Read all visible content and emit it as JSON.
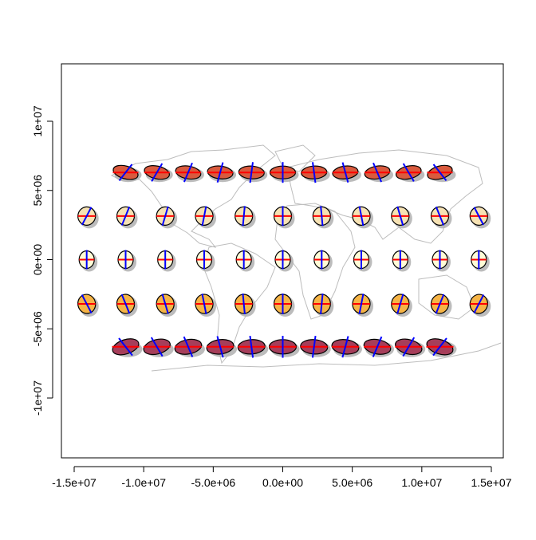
{
  "chart_data": {
    "type": "map",
    "title": "",
    "xlabel": "",
    "ylabel": "",
    "xlim": [
      -16000000,
      16000000
    ],
    "ylim": [
      -14200000,
      14200000
    ],
    "x_ticks": [
      {
        "value": -15000000,
        "label": "-1.5e+07"
      },
      {
        "value": -10000000,
        "label": "-1.0e+07"
      },
      {
        "value": -5000000,
        "label": "-5.0e+06"
      },
      {
        "value": 0,
        "label": "0.0e+00"
      },
      {
        "value": 5000000,
        "label": "5.0e+06"
      },
      {
        "value": 10000000,
        "label": "1.0e+07"
      },
      {
        "value": 15000000,
        "label": "1.5e+07"
      }
    ],
    "y_ticks": [
      {
        "value": -10000000,
        "label": "-1e+07"
      },
      {
        "value": -5000000,
        "label": "-5e+06"
      },
      {
        "value": 0,
        "label": "0e+00"
      },
      {
        "value": 5000000,
        "label": "5e+06"
      },
      {
        "value": 10000000,
        "label": "1e+07"
      }
    ],
    "grid": false,
    "basemap": "world country borders",
    "colors": {
      "outline": "#000000",
      "parallel": "#ff0000",
      "meridian": "#0000ff",
      "shadow": "#b0b0b0",
      "land": "#bebebe"
    },
    "indicatrix_rows": [
      {
        "y": 6300000,
        "fill": "#d95a3e",
        "x": [
          -11300000,
          -9050000,
          -6800000,
          -4500000,
          -2250000,
          0,
          2250000,
          4500000,
          6800000,
          9050000,
          11300000
        ]
      },
      {
        "y": 3150000,
        "fill": "#f6e2b4",
        "x": [
          -14100000,
          -11300000,
          -8450000,
          -5650000,
          -2800000,
          0,
          2800000,
          5650000,
          8450000,
          11300000,
          14100000
        ]
      },
      {
        "y": 0,
        "fill": "#fffcd6",
        "x": [
          -14100000,
          -11300000,
          -8450000,
          -5650000,
          -2800000,
          0,
          2800000,
          5650000,
          8450000,
          11300000,
          14100000
        ]
      },
      {
        "y": -3200000,
        "fill": "#f6b446",
        "x": [
          -14100000,
          -11300000,
          -8450000,
          -5650000,
          -2800000,
          0,
          2800000,
          5650000,
          8450000,
          11300000,
          14100000
        ]
      },
      {
        "y": -6300000,
        "fill": "#a63e5a",
        "x": [
          -11300000,
          -9050000,
          -6800000,
          -4500000,
          -2250000,
          0,
          2250000,
          4500000,
          6800000,
          9050000,
          11300000
        ]
      }
    ]
  }
}
